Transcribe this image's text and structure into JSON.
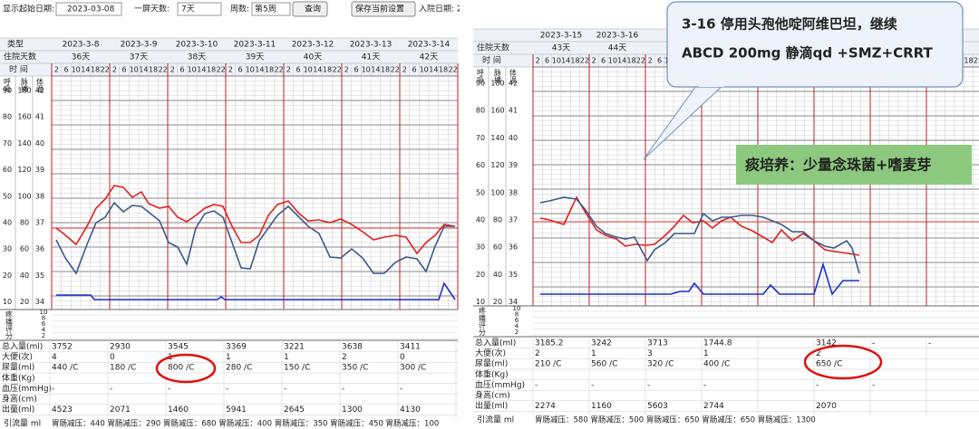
{
  "left": {
    "toolbar": {
      "start_label": "显示起始日期:",
      "start_value": "2023-03-08",
      "days_label": "一屏天数:",
      "days_value": "7天",
      "weeks_label": "周数:",
      "weeks_value": "第5周",
      "query": "查询",
      "save": "保存当前设置",
      "admit_label": "入院日期: 202"
    },
    "type_label": "类型",
    "dates": [
      "2023-3-8",
      "2023-3-9",
      "2023-3-10",
      "2023-3-11",
      "2023-3-12",
      "2023-3-13",
      "2023-3-14"
    ],
    "stay_label": "住院天数",
    "stays": [
      "36天",
      "37天",
      "38天",
      "39天",
      "40天",
      "41天",
      "42天"
    ],
    "time_label": "时 间",
    "hours": [
      2,
      6,
      10,
      14,
      18,
      22
    ],
    "axis_titles": [
      "呼吸",
      "脉搏",
      "体温"
    ],
    "resp": [
      90,
      80,
      70,
      60,
      50,
      40,
      30,
      20,
      10
    ],
    "pulse": [
      180,
      160,
      140,
      120,
      100,
      80,
      60,
      40,
      20
    ],
    "temp": [
      42,
      41,
      40,
      39,
      38,
      37,
      36,
      35,
      34
    ],
    "pain_label": "疼痛评分",
    "pain": [
      10,
      8,
      6,
      4,
      2
    ],
    "rows": [
      {
        "label": "总入量(ml)",
        "values": [
          3752,
          2930,
          3545,
          3369,
          3221,
          3638,
          3411
        ]
      },
      {
        "label": "大便(次)",
        "values": [
          4,
          0,
          1,
          1,
          1,
          2,
          0
        ]
      },
      {
        "label": "尿量(ml)",
        "values": [
          "440 /C",
          "180 /C",
          "800 /C",
          "280 /C",
          "150 /C",
          "350 /C",
          "300 /C"
        ]
      },
      {
        "label": "体重(Kg)",
        "values": []
      },
      {
        "label": "血压(mmHg)",
        "values": [
          "-",
          "-",
          "-",
          "-",
          "-",
          "-",
          "-"
        ]
      },
      {
        "label": "身高(cm)",
        "values": []
      },
      {
        "label": "出量(ml)",
        "values": [
          4523,
          2071,
          1460,
          5941,
          2645,
          1300,
          4130
        ]
      }
    ],
    "drain_label": "引流量 ml",
    "drain": "胃肠减压：440 胃肠减压：290 胃肠减压：680 胃肠减压：400 胃肠减压：350 胃肠减压：450 胃肠减压：100"
  },
  "right": {
    "dates": [
      "2023-3-15",
      "2023-3-16"
    ],
    "stay_label": "住院天数",
    "stays": [
      "43天",
      "44天"
    ],
    "time_label": "时 间",
    "hours": [
      2,
      6,
      10,
      14,
      18,
      22
    ],
    "axis_titles": [
      "呼吸",
      "脉搏",
      "体温"
    ],
    "resp": [
      90,
      80,
      70,
      60,
      50,
      40,
      30,
      20,
      10
    ],
    "pulse": [
      180,
      160,
      140,
      120,
      100,
      80,
      60,
      40,
      20
    ],
    "temp": [
      42,
      41,
      40,
      39,
      38,
      37,
      36,
      35,
      34
    ],
    "pain_label": "疼痛评分",
    "pain": [
      10,
      8,
      6,
      4,
      2
    ],
    "rows": [
      {
        "label": "总入量(ml)",
        "values": [
          3185.2,
          3242,
          3713,
          1744.8,
          null,
          3142,
          "-",
          "-"
        ]
      },
      {
        "label": "大便(次)",
        "values": [
          2,
          1,
          3,
          1,
          null,
          2
        ]
      },
      {
        "label": "尿量(ml)",
        "values": [
          "210 /C",
          "560 /C",
          "320 /C",
          "400 /C",
          null,
          "650 /C"
        ]
      },
      {
        "label": "体重(Kg)",
        "values": []
      },
      {
        "label": "血压(mmHg)",
        "values": [
          "-",
          "-",
          "-",
          "-",
          null,
          "-",
          "-"
        ]
      },
      {
        "label": "身高(cm)",
        "values": []
      },
      {
        "label": "出量(ml)",
        "values": [
          2274,
          1160,
          5603,
          2744,
          null,
          2070
        ]
      }
    ],
    "drain_label": "引流量 ml",
    "drain": "胃肠减压：580 胃肠减压：500 胃肠减压：650 胃肠减压：650 胃肠减压：1300",
    "callout": [
      "3-16 停用头孢他啶阿维巴坦，继续",
      "ABCD 200mg 静滴qd +SMZ+CRRT"
    ],
    "culture": "痰培养：少量念珠菌+嗜麦芽"
  }
}
